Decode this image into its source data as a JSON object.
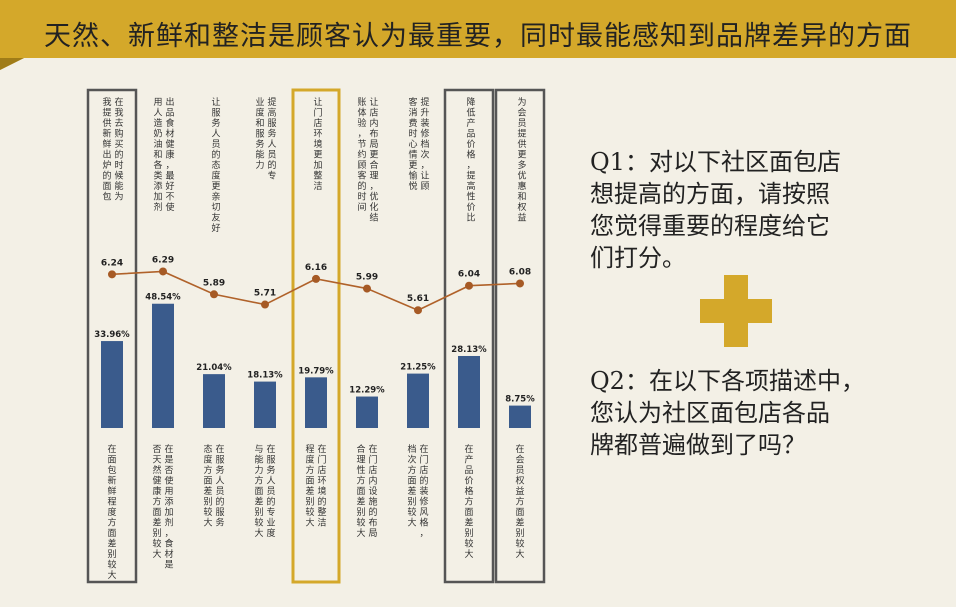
{
  "header": {
    "title": "天然、新鲜和整洁是顾客认为最重要，同时最能感知到品牌差异的方面"
  },
  "questions": {
    "q1": [
      "Q1：对以下社区面包店",
      "想提高的方面，请按照",
      "您觉得重要的程度给它",
      "们打分。"
    ],
    "q2": [
      "Q2：在以下各项描述中，",
      "您认为社区面包店各品",
      "牌都普遍做到了吗？"
    ]
  },
  "icons": {
    "plus": "plus-icon"
  },
  "colors": {
    "background": "#f3f0e6",
    "banner": "#d4a82a",
    "bar": "#3a5b8c",
    "line": "#b0622a",
    "marker": "#a65a25",
    "highlight_box": "#d4a82a",
    "gray_box": "#555555"
  },
  "chart_data": {
    "type": "bar+line",
    "categories_top": [
      "在我去购买的时候能为我提供新鲜出炉的面包",
      "出品食材健康，最好不使用人造奶油和各类添加剂",
      "让服务人员的态度更亲切友好",
      "提高服务人员的专业度和服务能力",
      "让门店环境更加整洁",
      "让店内布局更合理，优化结账体验，节约顾客的时间",
      "提升装修档次，让顾客消费时心情更愉悦",
      "降低产品价格，提高性价比",
      "为会员提供更多优惠和权益"
    ],
    "categories_bottom": [
      "在面包新鲜程度方面差别较大",
      "在是否使用添加剂，食材是否天然健康方面差别较大",
      "在服务人员的服务态度方面差别较大",
      "在服务人员的专业度与能力方面差别较大",
      "在门店环境的整洁程度方面差别较大",
      "在门店内设施的布局合理性方面差别较大",
      "在门店的装修风格，档次方面差别较大",
      "在产品价格方面差别较大",
      "在会员权益方面差别较大"
    ],
    "series": [
      {
        "type": "line",
        "values": [
          6.24,
          6.29,
          5.89,
          5.71,
          6.16,
          5.99,
          5.61,
          6.04,
          6.08
        ],
        "labels": [
          "6.24",
          "6.29",
          "5.89",
          "5.71",
          "6.16",
          "5.99",
          "5.61",
          "6.04",
          "6.08"
        ]
      },
      {
        "type": "bar",
        "values": [
          33.96,
          48.54,
          21.04,
          18.13,
          19.79,
          12.29,
          21.25,
          28.13,
          8.75
        ],
        "labels": [
          "33.96%",
          "48.54%",
          "21.04%",
          "18.13%",
          "19.79%",
          "12.29%",
          "21.25%",
          "28.13%",
          "8.75%"
        ]
      }
    ],
    "highlight": {
      "gold": [
        4
      ],
      "gray": [
        0,
        7,
        8
      ]
    }
  }
}
